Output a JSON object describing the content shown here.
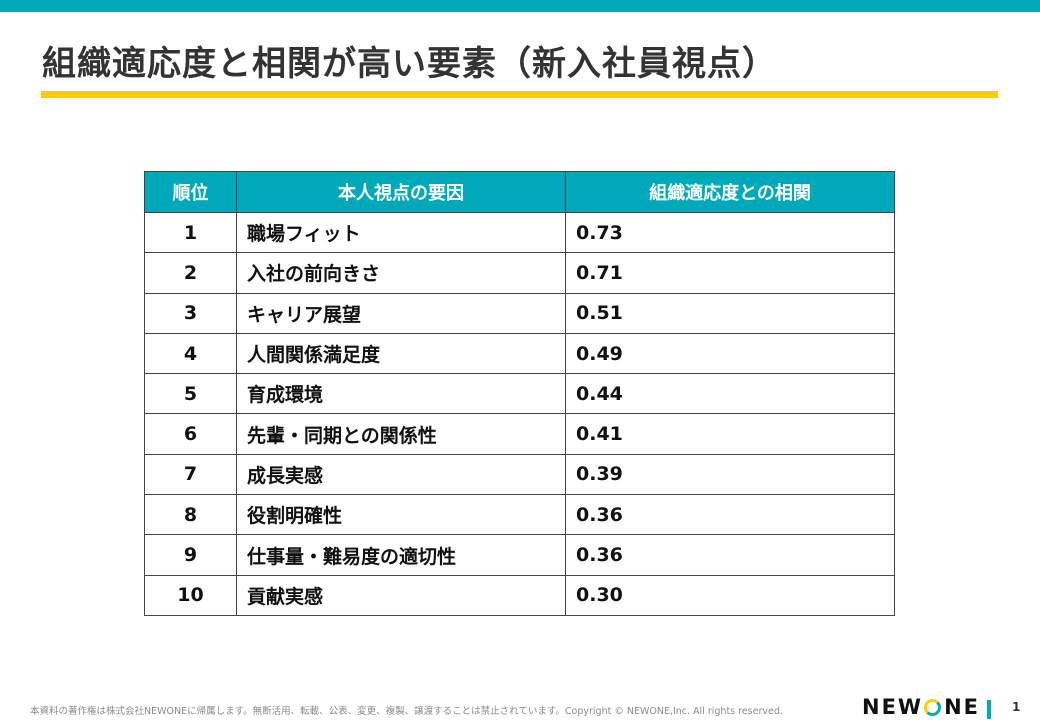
{
  "header": {
    "title": "組織適応度と相関が高い要素（新入社員視点）",
    "accent_color": "#00aabd",
    "underline_color": "#ffcc00"
  },
  "table": {
    "columns": [
      "順位",
      "本人視点の要因",
      "組織適応度との相関"
    ],
    "rows": [
      {
        "rank": "1",
        "factor": "職場フィット",
        "value": "0.73"
      },
      {
        "rank": "2",
        "factor": "入社の前向きさ",
        "value": "0.71"
      },
      {
        "rank": "3",
        "factor": "キャリア展望",
        "value": "0.51"
      },
      {
        "rank": "4",
        "factor": "人間関係満足度",
        "value": "0.49"
      },
      {
        "rank": "5",
        "factor": "育成環境",
        "value": "0.44"
      },
      {
        "rank": "6",
        "factor": "先輩・同期との関係性",
        "value": "0.41"
      },
      {
        "rank": "7",
        "factor": "成長実感",
        "value": "0.39"
      },
      {
        "rank": "8",
        "factor": "役割明確性",
        "value": "0.36"
      },
      {
        "rank": "9",
        "factor": "仕事量・難易度の適切性",
        "value": "0.36"
      },
      {
        "rank": "10",
        "factor": "貢献実感",
        "value": "0.30"
      }
    ],
    "header_color": "#00a9b9"
  },
  "footer": {
    "copyright": "本資料の著作権は株式会社NEWONEに帰属します。無断活用、転載、公表、変更、複製、譲渡することは禁止されています。Copyright © NEWONE,Inc.  All rights reserved.",
    "logo": {
      "part1": "NEW",
      "part2": "NE"
    },
    "page_number": "1"
  }
}
